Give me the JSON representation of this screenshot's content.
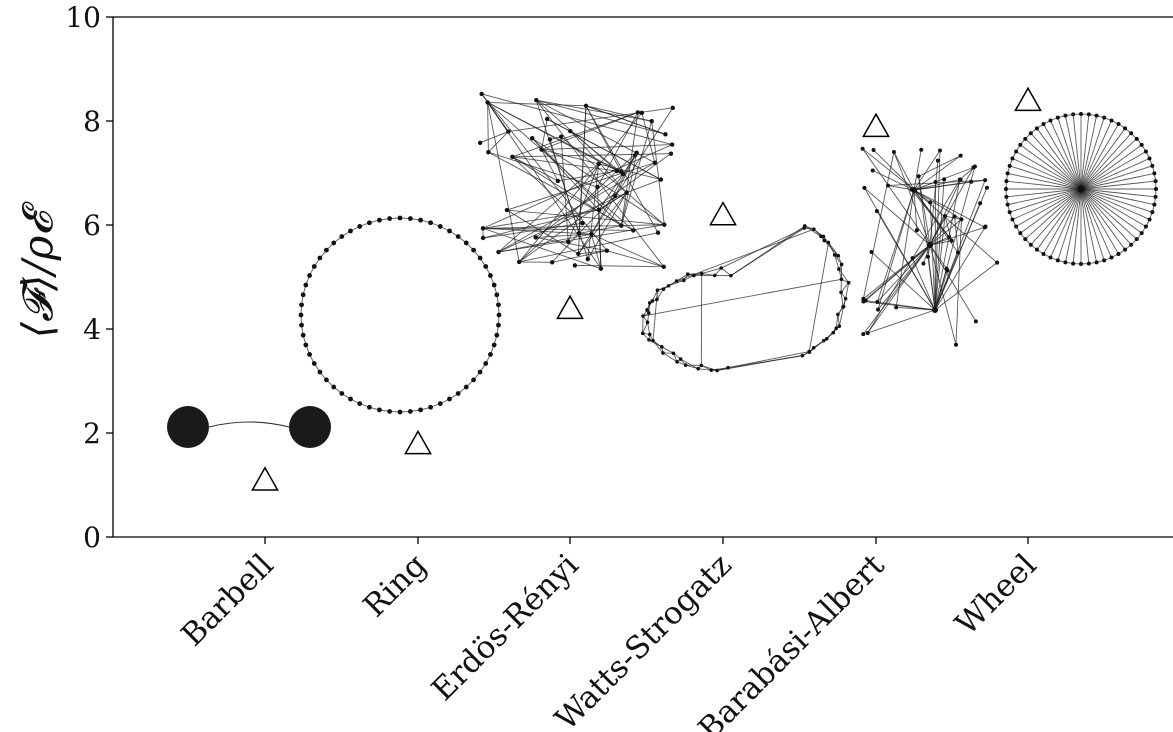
{
  "chart_data": {
    "type": "scatter",
    "marker": "open-triangle",
    "categories": [
      "Barbell",
      "Ring",
      "Erdös-Rényi",
      "Watts-Strogatz",
      "Barabási-Albert",
      "Wheel"
    ],
    "values": [
      1.1,
      1.8,
      4.4,
      6.2,
      7.9,
      8.4
    ],
    "ylabel": "⟨𝓕⟩/ρ𝓔",
    "xlabel": "",
    "ylim": [
      0,
      10
    ],
    "yticks": [
      0,
      2,
      4,
      6,
      8,
      10
    ],
    "grid": false,
    "legend": "none",
    "insets": [
      {
        "category": "Barbell",
        "graph": "barbell",
        "y_center": 2.1
      },
      {
        "category": "Ring",
        "graph": "ring",
        "y_center": 4.3
      },
      {
        "category": "Erdös-Rényi",
        "graph": "erdos-renyi",
        "y_center": 6.9
      },
      {
        "category": "Watts-Strogatz",
        "graph": "watts-strogatz",
        "y_center": 4.3
      },
      {
        "category": "Barabási-Albert",
        "graph": "barabasi-albert",
        "y_center": 5.6
      },
      {
        "category": "Wheel",
        "graph": "wheel",
        "y_center": 6.7
      }
    ]
  }
}
